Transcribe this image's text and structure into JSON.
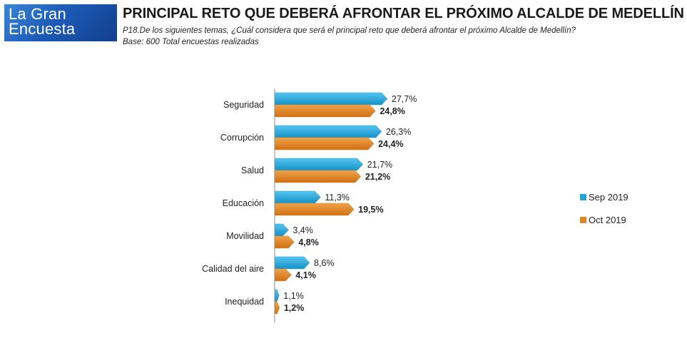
{
  "logo": {
    "line1": "La Gran",
    "line2": "Encuesta"
  },
  "header": {
    "title": "PRINCIPAL RETO QUE DEBERÁ AFRONTAR EL PRÓXIMO ALCALDE DE MEDELLÍN",
    "question": "P18.De los siguientes temas, ¿Cuál considera que será el principal reto que deberá afrontar el próximo Alcalde de Medellín?",
    "base": "Base: 600 Total encuestas realizadas"
  },
  "colors": {
    "sep": "#1fa6d8",
    "oct": "#e0851f"
  },
  "chart_data": {
    "type": "bar",
    "orientation": "horizontal",
    "categories": [
      "Seguridad",
      "Corrupción",
      "Salud",
      "Educación",
      "Movilidad",
      "Calidad del aire",
      "Inequidad"
    ],
    "series": [
      {
        "name": "Sep 2019",
        "values": [
          27.7,
          26.3,
          21.7,
          11.3,
          3.4,
          8.6,
          1.1
        ],
        "labels": [
          "27,7%",
          "26,3%",
          "21,7%",
          "11,3%",
          "3,4%",
          "8,6%",
          "1,1%"
        ]
      },
      {
        "name": "Oct 2019",
        "values": [
          24.8,
          24.4,
          21.2,
          19.5,
          4.8,
          4.1,
          1.2
        ],
        "labels": [
          "24,8%",
          "24,4%",
          "21,2%",
          "19,5%",
          "4,8%",
          "4,1%",
          "1,2%"
        ]
      }
    ],
    "legend": "right",
    "grid": false
  }
}
